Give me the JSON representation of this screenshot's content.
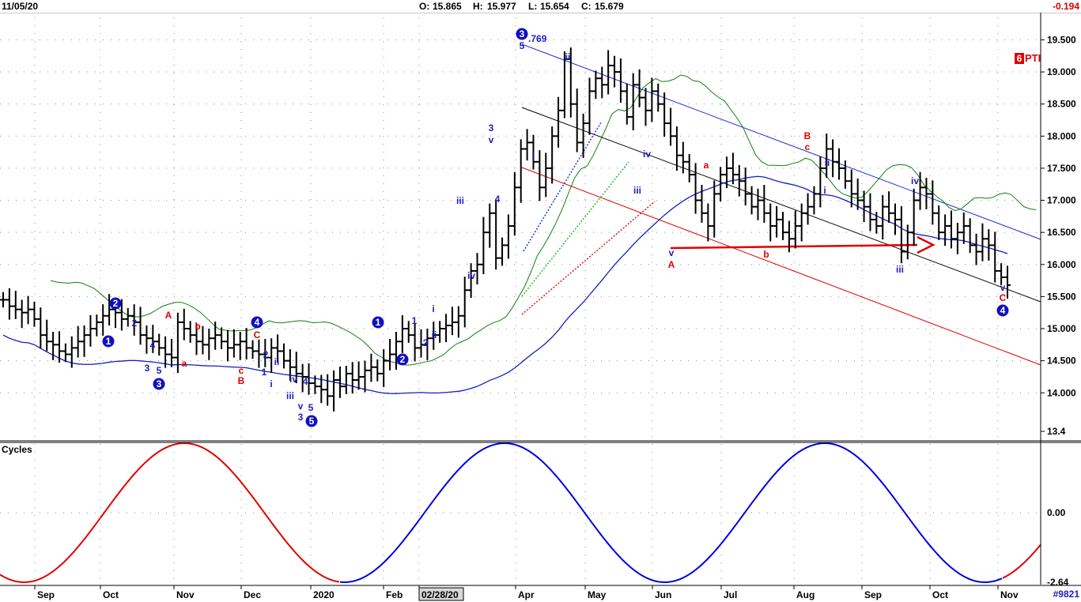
{
  "header": {
    "date": "11/05/20",
    "open_label": "O:",
    "open": "15.865",
    "high_label": "H:",
    "high": "15.977",
    "low_label": "L:",
    "low": "15.654",
    "close_label": "C:",
    "close": "15.679",
    "change": "-0.194"
  },
  "symbol": {
    "badge": "6",
    "name": "PTI"
  },
  "lower_panel_title": "Cycles",
  "corner_label": "#9821",
  "chart_data": [
    {
      "type": "line",
      "panel": "price",
      "x_axis": {
        "ticks": [
          "Sep",
          "Oct",
          "Nov",
          "Dec",
          "2020",
          "Feb",
          "02/28/20",
          "Apr",
          "May",
          "Jun",
          "Jul",
          "Aug",
          "Sep",
          "Oct",
          "Nov"
        ],
        "highlighted_tick": "02/28/20"
      },
      "y_axis": {
        "side": "right",
        "ticks": [
          13.4,
          14.0,
          14.5,
          15.0,
          15.5,
          16.0,
          16.5,
          17.0,
          17.5,
          18.0,
          18.5,
          19.0,
          19.5
        ],
        "tick_labels": [
          "13.4",
          "14.000",
          "14.500",
          "15.000",
          "15.500",
          "16.000",
          "16.500",
          "17.000",
          "17.500",
          "18.000",
          "18.500",
          "19.000",
          "19.500"
        ],
        "ylim": [
          13.4,
          19.85
        ]
      },
      "grid": true,
      "series": [
        {
          "kind": "ohlc-bars",
          "color": "#000000",
          "close": [
            15.45,
            15.35,
            15.3,
            15.25,
            15.3,
            15.15,
            14.9,
            14.8,
            14.75,
            14.65,
            14.6,
            14.7,
            14.8,
            14.9,
            15.0,
            15.1,
            15.2,
            15.3,
            15.25,
            15.15,
            15.2,
            15.1,
            14.9,
            14.85,
            14.8,
            14.7,
            14.6,
            14.55,
            15.1,
            15.0,
            14.9,
            14.8,
            14.75,
            14.85,
            14.9,
            14.8,
            14.7,
            14.75,
            14.8,
            14.7,
            14.65,
            14.6,
            14.55,
            14.7,
            14.65,
            14.5,
            14.4,
            14.3,
            14.25,
            14.15,
            14.1,
            14.05,
            13.95,
            14.2,
            14.1,
            14.3,
            14.2,
            14.25,
            14.35,
            14.4,
            14.3,
            14.5,
            14.6,
            14.8,
            15.0,
            14.9,
            14.7,
            14.75,
            14.85,
            14.9,
            15.0,
            15.05,
            15.1,
            15.2,
            15.6,
            15.9,
            16.0,
            16.5,
            16.8,
            16.1,
            16.3,
            16.6,
            17.2,
            17.8,
            17.9,
            17.6,
            17.2,
            17.5,
            18.0,
            18.4,
            19.2,
            18.5,
            17.9,
            18.2,
            18.7,
            18.9,
            18.8,
            19.1,
            19.0,
            18.7,
            18.3,
            18.8,
            18.6,
            18.4,
            18.7,
            18.5,
            18.2,
            18.0,
            17.7,
            17.6,
            17.4,
            17.0,
            16.8,
            16.6,
            17.1,
            17.4,
            17.5,
            17.4,
            17.3,
            17.1,
            16.9,
            17.0,
            16.8,
            16.6,
            16.7,
            16.5,
            16.4,
            16.6,
            16.8,
            16.9,
            17.1,
            17.5,
            17.8,
            17.6,
            17.5,
            17.3,
            17.1,
            17.0,
            16.9,
            16.7,
            16.6,
            16.9,
            16.8,
            16.7,
            16.2,
            16.5,
            17.0,
            17.2,
            17.1,
            16.8,
            16.5,
            16.6,
            16.4,
            16.5,
            16.6,
            16.3,
            16.2,
            16.4,
            16.3,
            15.9,
            15.8,
            15.679
          ]
        },
        {
          "kind": "line",
          "color": "#008000"
        },
        {
          "kind": "line",
          "color": "#0000c0"
        }
      ],
      "wave_labels_blue": [
        "1",
        "2",
        "3",
        "4",
        "5",
        "i",
        "ii",
        "iii",
        "iv",
        "v"
      ],
      "wave_labels_red": [
        "A",
        "B",
        "C",
        "a",
        "b",
        "c"
      ],
      "annotation_price": ".769"
    },
    {
      "type": "line",
      "panel": "cycles",
      "title": "Cycles",
      "y_axis": {
        "ticks": [
          0.0,
          -2.64
        ],
        "tick_labels": [
          "0.00",
          "-2.64"
        ]
      },
      "series": [
        {
          "name": "",
          "color": "#e00000",
          "segment": "past"
        },
        {
          "name": "",
          "color": "#0000e0",
          "segment": "projection"
        },
        {
          "name": "",
          "color": "#e00000",
          "segment": "future"
        }
      ]
    }
  ]
}
